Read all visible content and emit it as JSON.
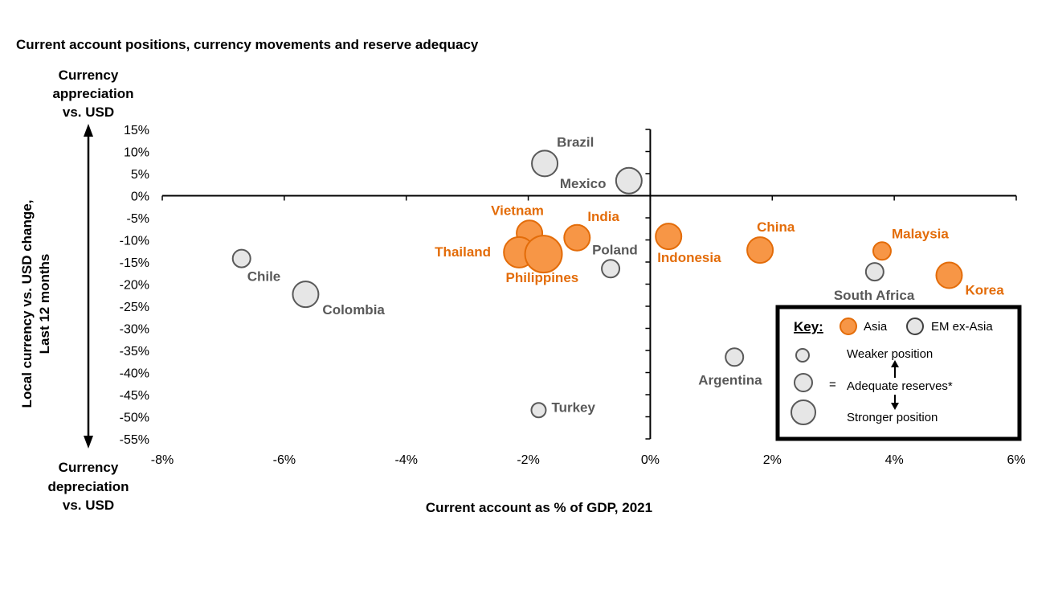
{
  "chart_data": {
    "type": "scatter",
    "title": "Current account positions, currency movements and reserve adequacy",
    "xlabel": "Current account as % of GDP, 2021",
    "ylabel_lines": [
      "Local currency vs. USD change,",
      "Last 12 months"
    ],
    "xlim": [
      -8,
      6
    ],
    "ylim": [
      -55,
      15
    ],
    "xticks": [
      "-8%",
      "-6%",
      "-4%",
      "-2%",
      "0%",
      "2%",
      "4%",
      "6%"
    ],
    "xtick_values": [
      -8,
      -6,
      -4,
      -2,
      0,
      2,
      4,
      6
    ],
    "yticks": [
      "15%",
      "10%",
      "5%",
      "0%",
      "-5%",
      "-10%",
      "-15%",
      "-20%",
      "-25%",
      "-30%",
      "-35%",
      "-40%",
      "-45%",
      "-50%",
      "-55%"
    ],
    "ytick_values": [
      15,
      10,
      5,
      0,
      -5,
      -10,
      -15,
      -20,
      -25,
      -30,
      -35,
      -40,
      -45,
      -50,
      -55
    ],
    "top_note": [
      "Currency",
      "appreciation",
      "vs. USD"
    ],
    "bottom_note": [
      "Currency",
      "depreciation",
      "vs. USD"
    ],
    "colors": {
      "asia": "#f79646",
      "asia_edge": "#e36c09",
      "em": "#e6e6e6",
      "em_edge": "#595959",
      "em_text": "#595959"
    },
    "series": [
      {
        "name": "Asia",
        "group": "asia",
        "points": [
          {
            "label": "Vietnam",
            "x": -1.98,
            "y": -8.5,
            "size": 2
          },
          {
            "label": "India",
            "x": -1.2,
            "y": -9.5,
            "size": 2
          },
          {
            "label": "Thailand",
            "x": -2.15,
            "y": -12.8,
            "size": 3
          },
          {
            "label": "Philippines",
            "x": -1.75,
            "y": -13.2,
            "size": 4
          },
          {
            "label": "Indonesia",
            "x": 0.3,
            "y": -9.2,
            "size": 2
          },
          {
            "label": "China",
            "x": 1.8,
            "y": -12.3,
            "size": 2
          },
          {
            "label": "Malaysia",
            "x": 3.8,
            "y": -12.5,
            "size": 1
          },
          {
            "label": "Korea",
            "x": 4.9,
            "y": -18.0,
            "size": 2
          }
        ]
      },
      {
        "name": "EM ex-Asia",
        "group": "em",
        "points": [
          {
            "label": "Brazil",
            "x": -1.73,
            "y": 7.3,
            "size": 2
          },
          {
            "label": "Mexico",
            "x": -0.35,
            "y": 3.4,
            "size": 2
          },
          {
            "label": "Poland",
            "x": -0.65,
            "y": -16.5,
            "size": 1
          },
          {
            "label": "Chile",
            "x": -6.7,
            "y": -14.2,
            "size": 1
          },
          {
            "label": "Colombia",
            "x": -5.65,
            "y": -22.3,
            "size": 2
          },
          {
            "label": "South Africa",
            "x": 3.68,
            "y": -17.2,
            "size": 1
          },
          {
            "label": "Argentina",
            "x": 1.38,
            "y": -36.5,
            "size": 1
          },
          {
            "label": "Turkey",
            "x": -1.83,
            "y": -48.5,
            "size": 0
          }
        ]
      }
    ],
    "legend": {
      "placement": "bottom-right",
      "heading": "Key:",
      "asia_label": "Asia",
      "em_label": "EM ex-Asia",
      "weaker": "Weaker position",
      "equals": "=",
      "adequate": "Adequate reserves*",
      "stronger": "Stronger position"
    }
  }
}
